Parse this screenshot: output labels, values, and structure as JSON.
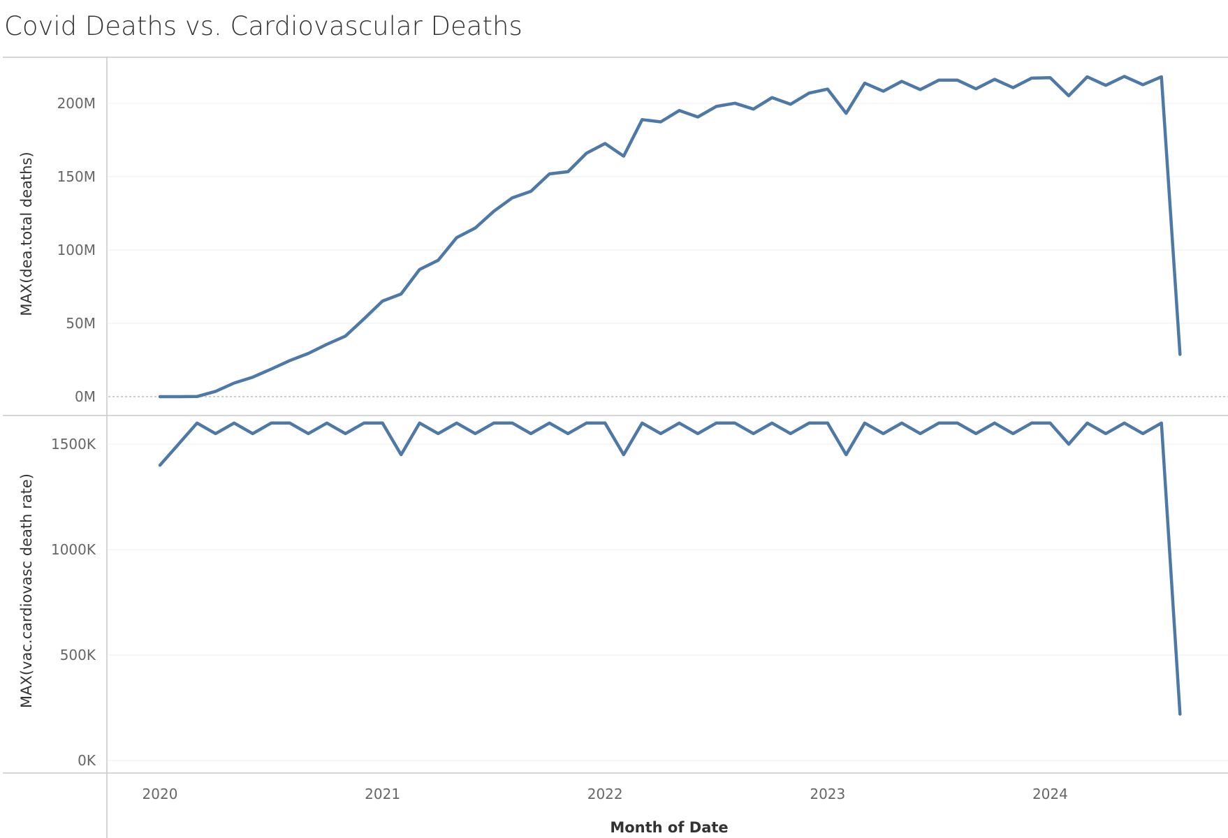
{
  "title": "Covid Deaths vs. Cardiovascular Deaths",
  "chart_data": {
    "type": "line",
    "xlabel": "Month of Date",
    "x_tick_labels": [
      "2020",
      "2021",
      "2022",
      "2023",
      "2024"
    ],
    "x_start": "2020-01",
    "color": "#4e79a7",
    "grid": true,
    "panels": [
      {
        "ylabel": "MAX(dea.total deaths)",
        "y_tick_labels": [
          "0M",
          "50M",
          "100M",
          "150M",
          "200M"
        ],
        "y_ticks": [
          0,
          50000000,
          100000000,
          150000000,
          200000000
        ],
        "ylim": [
          0,
          231000000
        ],
        "zero_line": true,
        "values": [
          0,
          0,
          100000,
          3600000,
          9300000,
          13300000,
          18800000,
          24600000,
          29500000,
          35700000,
          41300000,
          53000000,
          65200000,
          70000000,
          86700000,
          93000000,
          108500000,
          115000000,
          126400000,
          135600000,
          140000000,
          151900000,
          153400000,
          166000000,
          172600000,
          164000000,
          188900000,
          187400000,
          195100000,
          190700000,
          197900000,
          200100000,
          196100000,
          203900000,
          199400000,
          207000000,
          209700000,
          193200000,
          213800000,
          208300000,
          215000000,
          209400000,
          215800000,
          215800000,
          209900000,
          216400000,
          210700000,
          217200000,
          217500000,
          205200000,
          218100000,
          212300000,
          218400000,
          212700000,
          218100000,
          28800000
        ]
      },
      {
        "ylabel": "MAX(vac.cardiovasc death rate)",
        "y_tick_labels": [
          "0K",
          "500K",
          "1000K",
          "1500K"
        ],
        "y_ticks": [
          0,
          500000,
          1000000,
          1500000
        ],
        "ylim": [
          0,
          1680000
        ],
        "zero_line": false,
        "values": [
          1400000,
          1500000,
          1600000,
          1550000,
          1600000,
          1550000,
          1600000,
          1600000,
          1550000,
          1600000,
          1550000,
          1600000,
          1600000,
          1450000,
          1600000,
          1550000,
          1600000,
          1550000,
          1600000,
          1600000,
          1550000,
          1600000,
          1550000,
          1600000,
          1600000,
          1450000,
          1600000,
          1550000,
          1600000,
          1550000,
          1600000,
          1600000,
          1550000,
          1600000,
          1550000,
          1600000,
          1600000,
          1450000,
          1600000,
          1550000,
          1600000,
          1550000,
          1600000,
          1600000,
          1550000,
          1600000,
          1550000,
          1600000,
          1600000,
          1500000,
          1600000,
          1550000,
          1600000,
          1550000,
          1600000,
          220000
        ]
      }
    ]
  }
}
